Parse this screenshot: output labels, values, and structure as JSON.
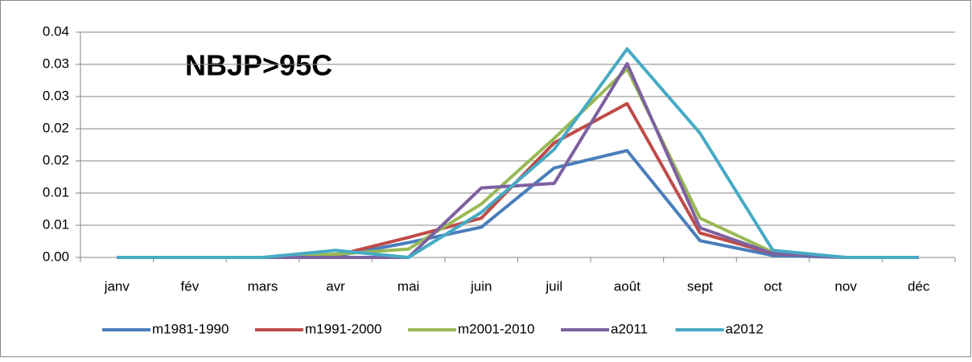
{
  "chart_data": {
    "type": "line",
    "annotation": "NBJP>95C",
    "categories": [
      "janv",
      "fév",
      "mars",
      "avr",
      "mai",
      "juin",
      "juil",
      "août",
      "sept",
      "oct",
      "nov",
      "déc"
    ],
    "series": [
      {
        "name": "m1981-1990",
        "color": "#4a7ebb",
        "values": [
          0,
          0,
          0,
          0.0002,
          0.0023,
          0.0047,
          0.0139,
          0.0166,
          0.0026,
          0.0003,
          0,
          0
        ]
      },
      {
        "name": "m1991-2000",
        "color": "#be4b48",
        "values": [
          0,
          0,
          0,
          0.0003,
          0.0031,
          0.0061,
          0.0178,
          0.0239,
          0.0038,
          0.0006,
          0,
          0
        ]
      },
      {
        "name": "m2001-2010",
        "color": "#98b954",
        "values": [
          0,
          0,
          0,
          0.0005,
          0.0013,
          0.0083,
          0.0185,
          0.0293,
          0.0061,
          0.0008,
          0,
          0
        ]
      },
      {
        "name": "a2011",
        "color": "#7d60a0",
        "values": [
          0,
          0,
          0,
          0,
          0,
          0.0108,
          0.0115,
          0.0301,
          0.0046,
          0.0006,
          0,
          0
        ]
      },
      {
        "name": "a2012",
        "color": "#46aac5",
        "values": [
          0,
          0,
          0,
          0.0011,
          0,
          0.007,
          0.0168,
          0.0324,
          0.0193,
          0.0011,
          0,
          0
        ]
      }
    ],
    "ylim": [
      0,
      0.035
    ],
    "yticks": [
      {
        "value": 0,
        "label": "0.00"
      },
      {
        "value": 0.005,
        "label": "0.01"
      },
      {
        "value": 0.01,
        "label": "0.01"
      },
      {
        "value": 0.015,
        "label": "0.02"
      },
      {
        "value": 0.02,
        "label": "0.02"
      },
      {
        "value": 0.025,
        "label": "0.03"
      },
      {
        "value": 0.03,
        "label": "0.03"
      },
      {
        "value": 0.035,
        "label": "0.04"
      }
    ],
    "grid": true,
    "legend": "bottom"
  }
}
